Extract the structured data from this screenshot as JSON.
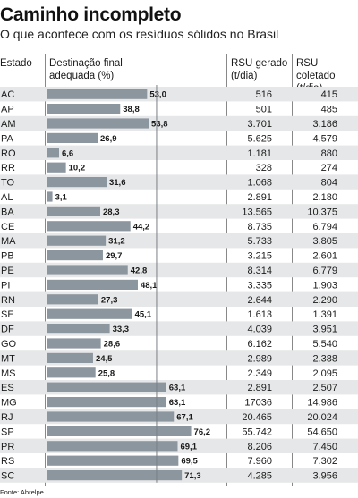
{
  "header": {
    "title": "Caminho incompleto",
    "subtitle": "O que acontece com os resíduos sólidos no Brasil"
  },
  "columns": {
    "estado": "Estado",
    "destinacao_line1": "Destinação final",
    "destinacao_line2": "adequada (%)",
    "gerado_line1": "RSU gerado",
    "gerado_line2": "(t/dia)",
    "coletado_line1": "RSU coletado",
    "coletado_line2": "(t/dia)"
  },
  "source": "Fonte: Abrelpe",
  "colors": {
    "bar": "#8c969e",
    "zebra": "#e6e7e8",
    "reference_line": "#7a7f85"
  },
  "chart_data": {
    "type": "bar",
    "orientation": "horizontal",
    "categories": [
      "AC",
      "AP",
      "AM",
      "PA",
      "RO",
      "RR",
      "TO",
      "AL",
      "BA",
      "CE",
      "MA",
      "PB",
      "PE",
      "PI",
      "RN",
      "SE",
      "DF",
      "GO",
      "MT",
      "MS",
      "ES",
      "MG",
      "RJ",
      "SP",
      "PR",
      "RS",
      "SC"
    ],
    "series": [
      {
        "values": [
          53.0,
          38.8,
          53.8,
          26.9,
          6.6,
          10.2,
          31.6,
          3.1,
          28.3,
          44.2,
          31.2,
          29.7,
          42.8,
          48.1,
          27.3,
          45.1,
          33.3,
          28.6,
          24.5,
          25.8,
          63.1,
          63.1,
          67.1,
          76.2,
          69.1,
          69.5,
          71.3
        ],
        "labels": [
          "53,0",
          "38,8",
          "53,8",
          "26,9",
          "6,6",
          "10,2",
          "31,6",
          "3,1",
          "28,3",
          "44,2",
          "31,2",
          "29,7",
          "42,8",
          "48,1",
          "27,3",
          "45,1",
          "33,3",
          "28,6",
          "24,5",
          "25,8",
          "63,1",
          "63,1",
          "67,1",
          "76,2",
          "69,1",
          "69,5",
          "71,3"
        ]
      }
    ],
    "rsu_gerado": [
      "516",
      "501",
      "3.701",
      "5.625",
      "1.181",
      "328",
      "1.068",
      "2.891",
      "13.565",
      "8.735",
      "5.733",
      "3.215",
      "8.314",
      "3.335",
      "2.644",
      "1.613",
      "4.039",
      "6.162",
      "2.989",
      "2.349",
      "2.891",
      "17036",
      "20.465",
      "55.742",
      "8.206",
      "7.960",
      "4.285"
    ],
    "rsu_coletado": [
      "415",
      "485",
      "3.186",
      "4.579",
      "880",
      "274",
      "804",
      "2.180",
      "10.375",
      "6.794",
      "3.805",
      "2.601",
      "6.779",
      "1.903",
      "2.290",
      "1.391",
      "3.951",
      "5.540",
      "2.388",
      "2.095",
      "2.507",
      "14.986",
      "20.024",
      "54.650",
      "7.450",
      "7.302",
      "3.956"
    ],
    "xlim": [
      0,
      100
    ],
    "reference_line_value": 58
  }
}
